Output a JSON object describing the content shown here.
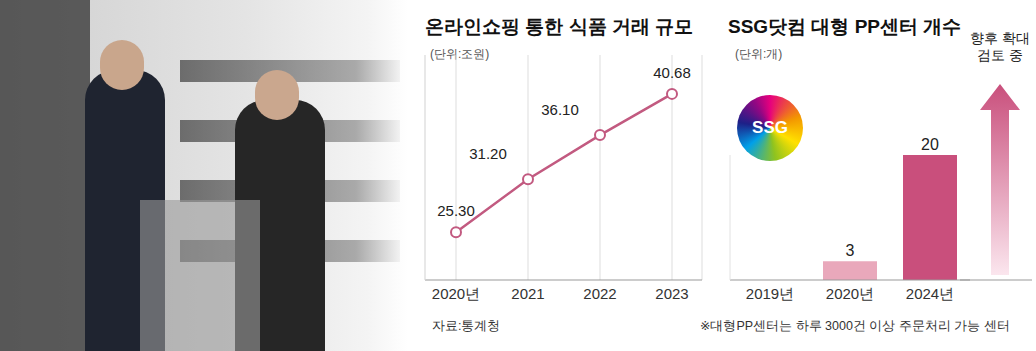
{
  "chart_data": [
    {
      "type": "line",
      "title": "온라인쇼핑 통한 식품 거래 규모",
      "subtitle": "(단위:조원)",
      "source": "자료:통계청",
      "categories": [
        "2020년",
        "2021",
        "2022",
        "2023"
      ],
      "values": [
        25.3,
        31.2,
        36.1,
        40.68
      ],
      "value_labels": [
        "25.30",
        "31.20",
        "36.10",
        "40.68"
      ],
      "color": "#c25a80",
      "marker": "circle",
      "ylim": [
        20,
        45
      ],
      "grid": true,
      "data_labels": true,
      "tick_labels": "x"
    },
    {
      "type": "bar",
      "title": "SSG닷컴 대형 PP센터 개수",
      "subtitle": "(단위:개)",
      "logo": "SSG",
      "annotation": "향후 확대 검토 중",
      "note": "※대형PP센터는 하루 3000건 이상 주문처리 가능 센터",
      "categories": [
        "2019년",
        "2020년",
        "2024년"
      ],
      "values": [
        0,
        3,
        20
      ],
      "colors": [
        "#e9a8bb",
        "#e9a8bb",
        "#c94f7c"
      ],
      "ylim": [
        0,
        20
      ],
      "data_labels": true,
      "tick_labels": "x"
    }
  ]
}
